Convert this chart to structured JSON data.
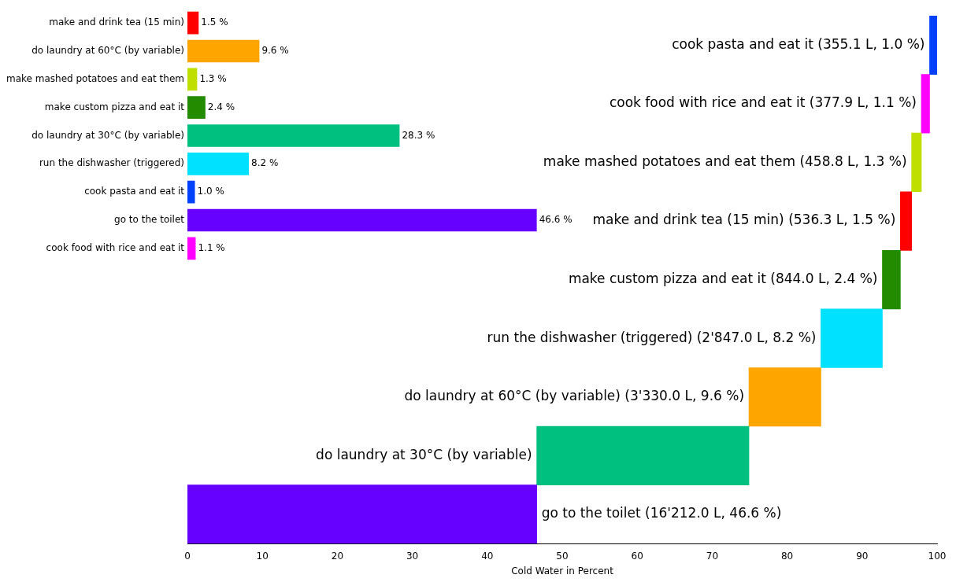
{
  "chart_data": [
    {
      "type": "bar",
      "orientation": "horizontal",
      "categories": [
        "make and drink tea (15 min)",
        "do laundry at 60°C (by variable)",
        "make mashed potatoes and eat them",
        "make custom pizza and eat it",
        "do laundry at 30°C (by variable)",
        "run the dishwasher (triggered)",
        "cook pasta and eat it",
        "go to the toilet",
        "cook food with rice and eat it"
      ],
      "values": [
        1.5,
        9.6,
        1.3,
        2.4,
        28.3,
        8.2,
        1.0,
        46.6,
        1.1
      ],
      "colors": [
        "#ff0000",
        "#ffa500",
        "#bfdf00",
        "#228b00",
        "#00c080",
        "#00e0ff",
        "#0040ff",
        "#6600ff",
        "#ff00ff"
      ],
      "value_labels": [
        "1.5 %",
        "9.6 %",
        "1.3 %",
        "2.4 %",
        "28.3 %",
        "8.2 %",
        "1.0 %",
        "46.6 %",
        "1.1 %"
      ],
      "xlim": [
        0,
        100
      ],
      "xticks": [
        0,
        10,
        20,
        30,
        40,
        50,
        60,
        70,
        80,
        90,
        100
      ],
      "tick_labels": "y",
      "grid": false,
      "legend": false
    },
    {
      "type": "bar",
      "orientation": "horizontal",
      "categories": [
        "cook pasta and eat it (355.1 L, 1.0 %)",
        "cook food with rice and eat it (377.9 L, 1.1 %)",
        "make mashed potatoes and eat them (458.8 L, 1.3 %)",
        "make and drink tea (15 min) (536.3 L, 1.5 %)",
        "make custom pizza and eat it (844.0 L, 2.4 %)",
        "run the dishwasher (triggered) (2'847.0 L, 8.2 %)",
        "do laundry at 60°C (by variable) (3'330.0 L, 9.6 %)",
        "do laundry at 30°C (by variable)",
        "go to the toilet (16'212.0 L, 46.6 %)"
      ],
      "values": [
        1.0,
        1.1,
        1.3,
        1.5,
        2.4,
        8.2,
        9.6,
        28.3,
        46.6
      ],
      "base": [
        99.0,
        97.9,
        96.6,
        95.1,
        92.7,
        84.5,
        74.9,
        46.6,
        0
      ],
      "colors": [
        "#0040ff",
        "#ff00ff",
        "#bfdf00",
        "#ff0000",
        "#228b00",
        "#00e0ff",
        "#ffa500",
        "#00c080",
        "#6600ff"
      ],
      "xlim": [
        0,
        100
      ],
      "xticks": [
        0,
        10,
        20,
        30,
        40,
        50,
        60,
        70,
        80,
        90,
        100
      ],
      "xlabel": "Cold Water in Percent",
      "grid": false,
      "legend": false
    }
  ]
}
